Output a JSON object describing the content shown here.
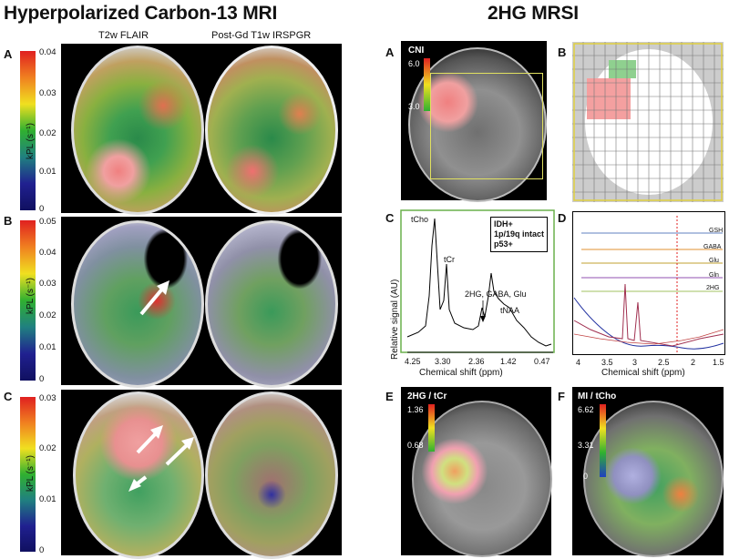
{
  "left": {
    "title": "Hyperpolarized Carbon-13 MRI",
    "col1": "T2w FLAIR",
    "col2": "Post-Gd T1w IRSPGR",
    "panels": [
      {
        "label": "A",
        "axis": "kPL (s⁻¹)",
        "ticks": [
          "0.04",
          "0.03",
          "0.02",
          "0.01",
          "0"
        ]
      },
      {
        "label": "B",
        "axis": "kPL (s⁻¹)",
        "ticks": [
          "0.05",
          "0.04",
          "0.03",
          "0.02",
          "0.01",
          "0"
        ]
      },
      {
        "label": "C",
        "axis": "kPL (s⁻¹)",
        "ticks": [
          "0.03",
          "0.02",
          "0.01",
          "0"
        ]
      }
    ]
  },
  "right": {
    "title": "2HG MRSI",
    "A": {
      "label": "A",
      "cbar_title": "CNI",
      "cbar_max": "6.0",
      "cbar_mid": "3.0"
    },
    "B": {
      "label": "B"
    },
    "C": {
      "label": "C",
      "ylabel": "Relative signal (AU)",
      "xlabel": "Chemical shift (ppm)",
      "ticks": [
        "4.25",
        "3.30",
        "2.36",
        "1.42",
        "0.47"
      ],
      "peaks": {
        "tcho": "tCho",
        "tcr": "tCr",
        "mid": "2HG, GABA, Glu",
        "tnaa": "tNAA"
      },
      "box": [
        "IDH+",
        "1p/19q intact",
        "p53+"
      ]
    },
    "D": {
      "label": "D",
      "xlabel": "Chemical shift (ppm)",
      "ticks": [
        "4",
        "3.5",
        "3",
        "2.5",
        "2",
        "1.5"
      ],
      "traces": [
        "GSH",
        "GABA",
        "Glu",
        "Gln",
        "2HG"
      ]
    },
    "E": {
      "label": "E",
      "title": "2HG / tCr",
      "cbar_max": "1.36",
      "cbar_mid": "0.68"
    },
    "F": {
      "label": "F",
      "title": "MI / tCho",
      "cbar_max": "6.62",
      "cbar_mid": "3.31",
      "cbar_min": "0"
    }
  }
}
